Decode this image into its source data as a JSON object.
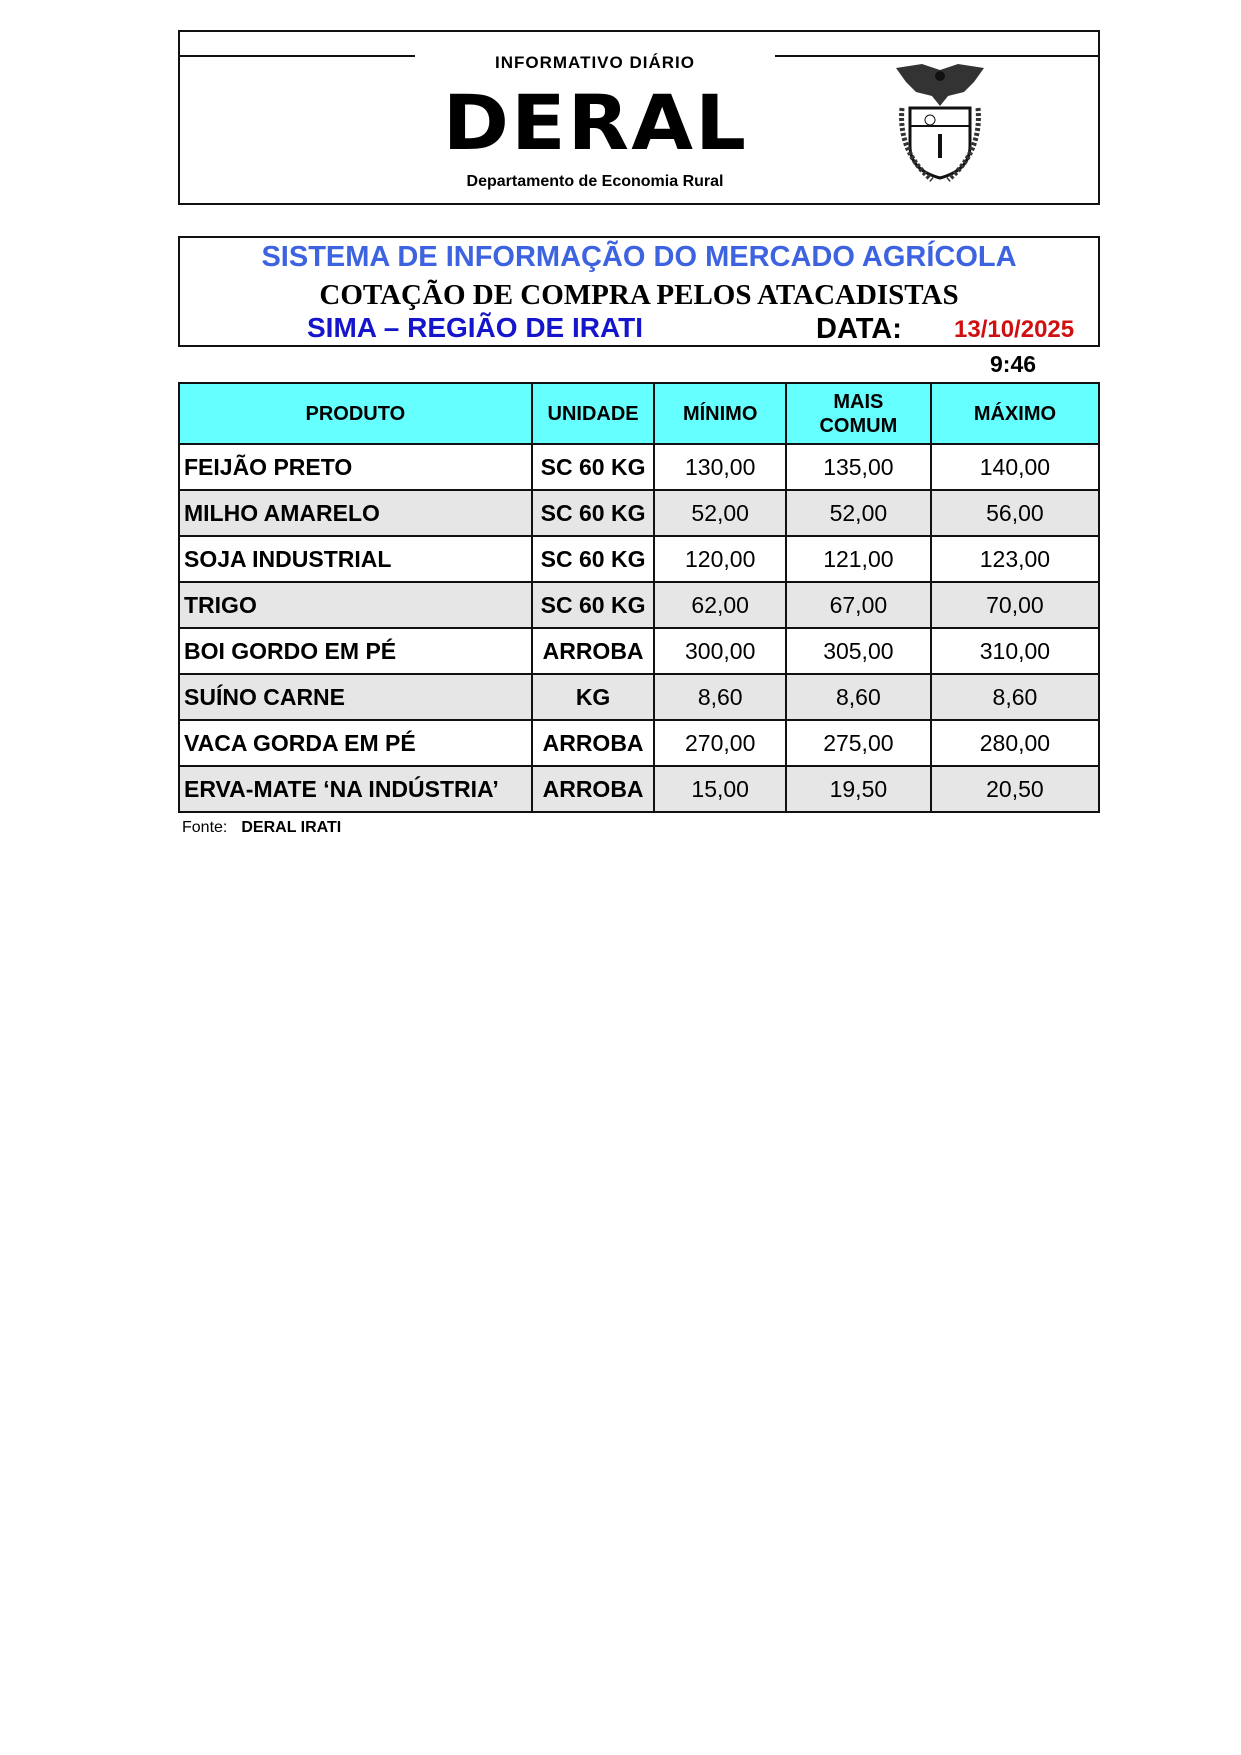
{
  "header": {
    "logo_top": "INFORMATIVO DIÁRIO",
    "logo_main": "DERAL",
    "logo_sub": "Departamento de Economia Rural",
    "emblem": "parana-coat-of-arms"
  },
  "title": {
    "line1": "SISTEMA DE INFORMAÇÃO DO MERCADO AGRÍCOLA",
    "line2": "COTAÇÃO DE COMPRA PELOS ATACADISTAS",
    "region": "SIMA – REGIÃO DE IRATI",
    "date_label": "DATA:",
    "date": "13/10/2025",
    "time": "9:46"
  },
  "colors": {
    "title_blue": "#3d63e0",
    "region_blue": "#1515cc",
    "date_red": "#d01010",
    "header_cyan": "#66ffff"
  },
  "table": {
    "headers": [
      "PRODUTO",
      "UNIDADE",
      "MÍNIMO",
      "MAIS COMUM",
      "MÁXIMO"
    ],
    "rows": [
      [
        "FEIJÃO PRETO",
        "SC 60 KG",
        "130,00",
        "135,00",
        "140,00"
      ],
      [
        "MILHO AMARELO",
        "SC 60 KG",
        "52,00",
        "52,00",
        "56,00"
      ],
      [
        "SOJA INDUSTRIAL",
        "SC 60 KG",
        "120,00",
        "121,00",
        "123,00"
      ],
      [
        "TRIGO",
        "SC 60 KG",
        "62,00",
        "67,00",
        "70,00"
      ],
      [
        "BOI GORDO EM PÉ",
        "ARROBA",
        "300,00",
        "305,00",
        "310,00"
      ],
      [
        "SUÍNO CARNE",
        "KG",
        "8,60",
        "8,60",
        "8,60"
      ],
      [
        "VACA GORDA EM PÉ",
        "ARROBA",
        "270,00",
        "275,00",
        "280,00"
      ],
      [
        "ERVA-MATE ‘NA INDÚSTRIA’",
        "ARROBA",
        "15,00",
        "19,50",
        "20,50"
      ]
    ]
  },
  "footer": {
    "label": "Fonte:",
    "source": "DERAL IRATI"
  }
}
